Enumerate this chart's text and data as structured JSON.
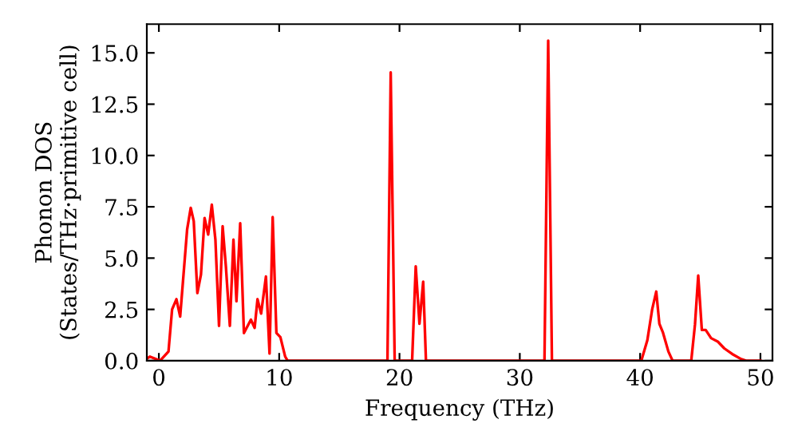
{
  "chart_data": {
    "type": "line",
    "xlabel": "Frequency (THz)",
    "ylabel": "Phonon DOS\n(States/THz·primitive cell)",
    "xlim": [
      -1,
      51
    ],
    "ylim": [
      0,
      16.4
    ],
    "xticks": [
      0,
      10,
      20,
      30,
      40,
      50
    ],
    "yticks": [
      {
        "value": 0,
        "label": "0.0"
      },
      {
        "value": 2.5,
        "label": "2.5"
      },
      {
        "value": 5,
        "label": "5.0"
      },
      {
        "value": 7.5,
        "label": "7.5"
      },
      {
        "value": 10,
        "label": "10.0"
      },
      {
        "value": 12.5,
        "label": "12.5"
      },
      {
        "value": 15,
        "label": "15.0"
      }
    ],
    "grid": false,
    "marker": "none",
    "line_style": "solid",
    "series": [
      {
        "color": "#ff0000",
        "x": [
          -1,
          -0.75,
          0.1,
          0.8,
          1.1,
          1.46,
          1.77,
          2.35,
          2.65,
          2.9,
          3.2,
          3.5,
          3.8,
          4.1,
          4.4,
          4.7,
          5.0,
          5.3,
          5.57,
          5.9,
          6.2,
          6.45,
          6.76,
          7.07,
          7.65,
          7.96,
          8.2,
          8.5,
          8.9,
          9.2,
          9.46,
          9.77,
          10.1,
          10.5,
          10.7,
          19.0,
          19.27,
          19.6,
          21.05,
          21.35,
          21.66,
          21.97,
          22.2,
          32.05,
          32.36,
          32.67,
          40.1,
          40.6,
          41.0,
          41.34,
          41.6,
          41.9,
          42.35,
          42.7,
          44.25,
          44.56,
          44.83,
          45.13,
          45.45,
          45.9,
          46.46,
          47.0,
          47.65,
          48.4,
          48.8,
          50
        ],
        "values": [
          0.1,
          0.2,
          0.0,
          0.45,
          2.5,
          3.0,
          2.15,
          6.4,
          7.45,
          6.8,
          3.3,
          4.2,
          6.95,
          6.15,
          7.6,
          5.9,
          1.7,
          6.55,
          4.6,
          1.7,
          5.9,
          2.9,
          6.7,
          1.35,
          2.0,
          1.6,
          3.0,
          2.3,
          4.1,
          0.35,
          7.0,
          1.35,
          1.15,
          0.2,
          0,
          0,
          14.05,
          0,
          0,
          4.6,
          1.8,
          3.85,
          0,
          0,
          15.6,
          0,
          0,
          1.0,
          2.5,
          3.37,
          1.8,
          1.37,
          0.45,
          0,
          0,
          1.76,
          4.15,
          1.5,
          1.5,
          1.1,
          0.93,
          0.6,
          0.33,
          0.08,
          0,
          0
        ]
      }
    ]
  }
}
